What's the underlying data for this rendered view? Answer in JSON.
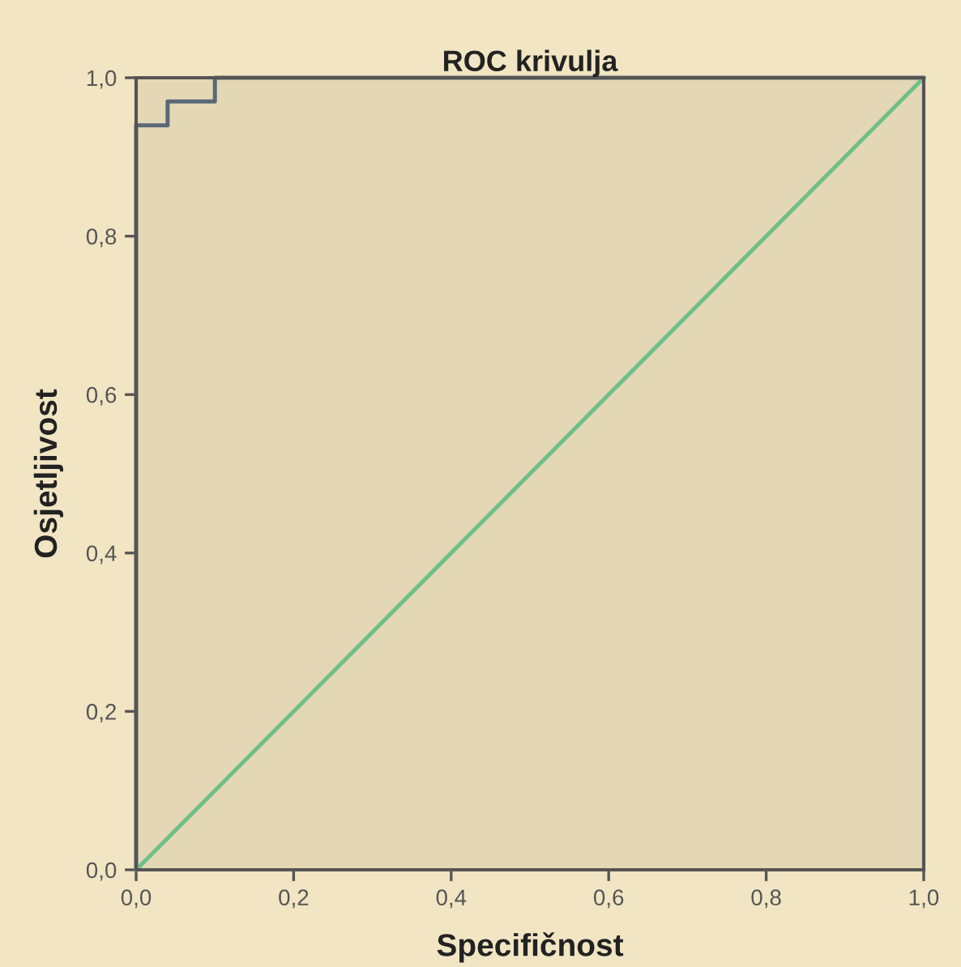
{
  "chart_data": {
    "type": "line",
    "title": "ROC krivulja",
    "xlabel": "Specifičnost",
    "ylabel": "Osjetljivost",
    "series": [
      {
        "color": "#5b6878",
        "x": [
          0,
          0,
          0.04,
          0.04,
          0.1,
          0.1,
          1
        ],
        "values": [
          0,
          0.94,
          0.94,
          0.97,
          0.97,
          1,
          1
        ]
      },
      {
        "color": "#6fbf8a",
        "x": [
          0,
          1
        ],
        "values": [
          0,
          1
        ]
      }
    ],
    "xlim": [
      0,
      1
    ],
    "ylim": [
      0,
      1
    ],
    "xticks": [
      {
        "value": 0,
        "label": "0,0"
      },
      {
        "value": 0.2,
        "label": "0,2"
      },
      {
        "value": 0.4,
        "label": "0,4"
      },
      {
        "value": 0.6,
        "label": "0,6"
      },
      {
        "value": 0.8,
        "label": "0,8"
      },
      {
        "value": 1,
        "label": "1,0"
      }
    ],
    "yticks": [
      {
        "value": 0,
        "label": "0,0"
      },
      {
        "value": 0.2,
        "label": "0,2"
      },
      {
        "value": 0.4,
        "label": "0,4"
      },
      {
        "value": 0.6,
        "label": "0,6"
      },
      {
        "value": 0.8,
        "label": "0,8"
      },
      {
        "value": 1,
        "label": "1,0"
      }
    ],
    "grid": false
  }
}
